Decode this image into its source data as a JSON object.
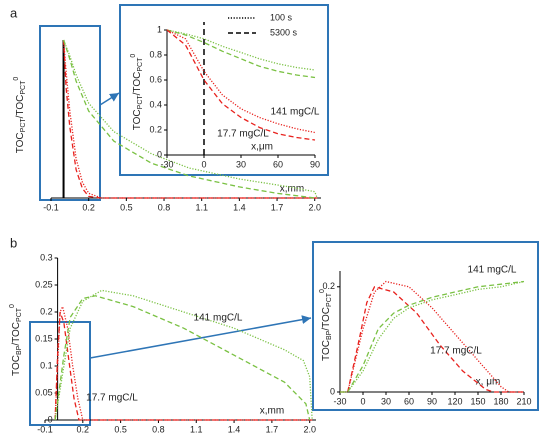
{
  "chart_data": [
    {
      "type": "line",
      "panel": "a",
      "xlabel": "x,mm",
      "ylabel_parts": [
        "TOC",
        "PCT",
        "/TOC",
        "PCT",
        "0"
      ],
      "xlim": [
        -0.1,
        2.05
      ],
      "ylim": [
        0,
        1
      ],
      "xticks": [
        -0.1,
        0.2,
        0.5,
        0.8,
        1.1,
        1.4,
        1.7,
        {
          "value": 2,
          "label": "2.0"
        }
      ],
      "series": [
        {
          "color": "#e8221e",
          "style": "dotted",
          "x": [
            0,
            0.02,
            0.05,
            0.1,
            0.15,
            0.2,
            0.3,
            2.02
          ],
          "values": [
            1,
            0.8,
            0.55,
            0.25,
            0.1,
            0.03,
            0,
            0
          ]
        },
        {
          "color": "#e8221e",
          "style": "dashed",
          "x": [
            0,
            0.02,
            0.05,
            0.1,
            0.15,
            0.2,
            0.3,
            2.02
          ],
          "values": [
            1,
            0.7,
            0.45,
            0.18,
            0.06,
            0.01,
            0,
            0
          ]
        },
        {
          "color": "#7ac143",
          "style": "dotted",
          "x": [
            0,
            0.05,
            0.1,
            0.2,
            0.4,
            0.7,
            1.0,
            1.4,
            1.8,
            2.0,
            2.02
          ],
          "values": [
            1,
            0.9,
            0.78,
            0.6,
            0.42,
            0.28,
            0.19,
            0.12,
            0.07,
            0.04,
            0
          ]
        },
        {
          "color": "#7ac143",
          "style": "dashed",
          "x": [
            0,
            0.05,
            0.1,
            0.2,
            0.4,
            0.7,
            1.0,
            1.4,
            1.7,
            1.9,
            2.0
          ],
          "values": [
            1,
            0.88,
            0.74,
            0.55,
            0.36,
            0.22,
            0.14,
            0.07,
            0.03,
            0.01,
            0
          ]
        }
      ]
    },
    {
      "type": "line",
      "xlabel": "x,μm",
      "ylabel_parts": [
        "TOC",
        "PCT",
        "/TOC",
        "PCT",
        "0"
      ],
      "xlim": [
        -30,
        90
      ],
      "ylim": [
        0,
        1
      ],
      "xticks": [
        -30,
        0,
        30,
        60,
        90
      ],
      "yticks": [
        0,
        0.2,
        0.4,
        0.6,
        0.8,
        1
      ],
      "vline": 0,
      "legend": [
        {
          "label": "100 s",
          "style": "dotted"
        },
        {
          "label": "5300 s",
          "style": "dashed"
        }
      ],
      "annotations": [
        {
          "text": "141 mgC/L",
          "color": "#7ac143"
        },
        {
          "text": "17.7 mgC/L",
          "color": "#e8221e"
        }
      ],
      "series": [
        {
          "color": "#7ac143",
          "style": "dotted",
          "x": [
            -30,
            -15,
            0,
            15,
            30,
            45,
            60,
            75,
            90
          ],
          "values": [
            1,
            0.97,
            0.93,
            0.87,
            0.82,
            0.77,
            0.73,
            0.7,
            0.68
          ]
        },
        {
          "color": "#7ac143",
          "style": "dashed",
          "x": [
            -30,
            -15,
            0,
            15,
            30,
            45,
            60,
            75,
            90
          ],
          "values": [
            1,
            0.96,
            0.9,
            0.83,
            0.77,
            0.71,
            0.67,
            0.64,
            0.62
          ]
        },
        {
          "color": "#e8221e",
          "style": "dotted",
          "x": [
            -30,
            -15,
            0,
            15,
            30,
            45,
            60,
            75,
            90
          ],
          "values": [
            1,
            0.93,
            0.67,
            0.48,
            0.37,
            0.3,
            0.25,
            0.21,
            0.18
          ]
        },
        {
          "color": "#e8221e",
          "style": "dashed",
          "x": [
            -30,
            -15,
            0,
            15,
            30,
            45,
            60,
            75,
            90
          ],
          "values": [
            1,
            0.88,
            0.6,
            0.41,
            0.3,
            0.22,
            0.17,
            0.14,
            0.12
          ]
        }
      ]
    },
    {
      "type": "line",
      "panel": "b",
      "xlabel": "x,mm",
      "ylabel_parts": [
        "TOC",
        "BP",
        "/TOC",
        "PCT",
        "0"
      ],
      "xlim": [
        -0.1,
        2.05
      ],
      "ylim": [
        0,
        0.3
      ],
      "xticks": [
        -0.1,
        0.2,
        0.5,
        0.8,
        1.1,
        1.4,
        1.7,
        {
          "value": 2,
          "label": "2.0"
        }
      ],
      "yticks": [
        0,
        0.05,
        0.1,
        0.15,
        0.2,
        0.25,
        0.3
      ],
      "annotations": [
        {
          "text": "141 mgC/L",
          "color": "#7ac143"
        },
        {
          "text": "17.7 mgC/L",
          "color": "#e8221e"
        }
      ],
      "series": [
        {
          "color": "#e8221e",
          "style": "dotted",
          "x": [
            -0.02,
            0,
            0.02,
            0.04,
            0.08,
            0.12,
            0.16,
            0.2,
            0.3,
            2.02
          ],
          "values": [
            0,
            0.1,
            0.2,
            0.21,
            0.17,
            0.1,
            0.04,
            0,
            0,
            0
          ]
        },
        {
          "color": "#e8221e",
          "style": "dashed",
          "x": [
            -0.02,
            0,
            0.02,
            0.05,
            0.09,
            0.13,
            0.17,
            0.3,
            2.02
          ],
          "values": [
            0,
            0.12,
            0.2,
            0.18,
            0.11,
            0.04,
            0,
            0,
            0
          ]
        },
        {
          "color": "#7ac143",
          "style": "dotted",
          "x": [
            -0.02,
            0.05,
            0.1,
            0.2,
            0.35,
            0.6,
            1.0,
            1.4,
            1.8,
            1.95,
            2.0,
            2.02
          ],
          "values": [
            0,
            0.1,
            0.17,
            0.22,
            0.24,
            0.23,
            0.2,
            0.17,
            0.13,
            0.11,
            0.08,
            0
          ]
        },
        {
          "color": "#7ac143",
          "style": "dashed",
          "x": [
            -0.02,
            0.05,
            0.1,
            0.2,
            0.3,
            0.6,
            1.0,
            1.4,
            1.8,
            1.97,
            2.0
          ],
          "values": [
            0,
            0.12,
            0.19,
            0.225,
            0.23,
            0.21,
            0.17,
            0.12,
            0.07,
            0.03,
            0
          ]
        }
      ]
    },
    {
      "type": "line",
      "xlabel": "x, μm",
      "ylabel_parts": [
        "TOC",
        "BP",
        "/TOC",
        "PCT",
        "0"
      ],
      "xlim": [
        -30,
        210
      ],
      "ylim": [
        0,
        0.23
      ],
      "xticks": [
        -30,
        0,
        30,
        60,
        90,
        120,
        150,
        180,
        210
      ],
      "yticks": [
        0,
        0.2
      ],
      "annotations": [
        {
          "text": "141 mgC/L",
          "color": "#7ac143"
        },
        {
          "text": "17.7 mgC/L",
          "color": "#e8221e"
        }
      ],
      "series": [
        {
          "color": "#e8221e",
          "style": "dotted",
          "x": [
            -30,
            -20,
            0,
            15,
            30,
            60,
            90,
            120,
            150,
            180,
            190,
            210
          ],
          "values": [
            0,
            0,
            0.12,
            0.19,
            0.21,
            0.2,
            0.16,
            0.11,
            0.06,
            0.01,
            0,
            0
          ]
        },
        {
          "color": "#e8221e",
          "style": "dashed",
          "x": [
            -30,
            -20,
            -5,
            5,
            15,
            40,
            70,
            100,
            130,
            160,
            170,
            210
          ],
          "values": [
            0,
            0,
            0.1,
            0.17,
            0.2,
            0.19,
            0.15,
            0.09,
            0.04,
            0.005,
            0,
            0
          ]
        },
        {
          "color": "#7ac143",
          "style": "dotted",
          "x": [
            -30,
            -20,
            0,
            20,
            40,
            60,
            90,
            120,
            150,
            180,
            210
          ],
          "values": [
            0,
            0,
            0.04,
            0.1,
            0.14,
            0.16,
            0.175,
            0.185,
            0.195,
            0.2,
            0.21
          ]
        },
        {
          "color": "#7ac143",
          "style": "dashed",
          "x": [
            -30,
            -20,
            0,
            20,
            40,
            60,
            90,
            120,
            150,
            180,
            210
          ],
          "values": [
            0,
            0,
            0.05,
            0.12,
            0.15,
            0.165,
            0.18,
            0.19,
            0.2,
            0.205,
            0.21
          ]
        }
      ]
    }
  ]
}
